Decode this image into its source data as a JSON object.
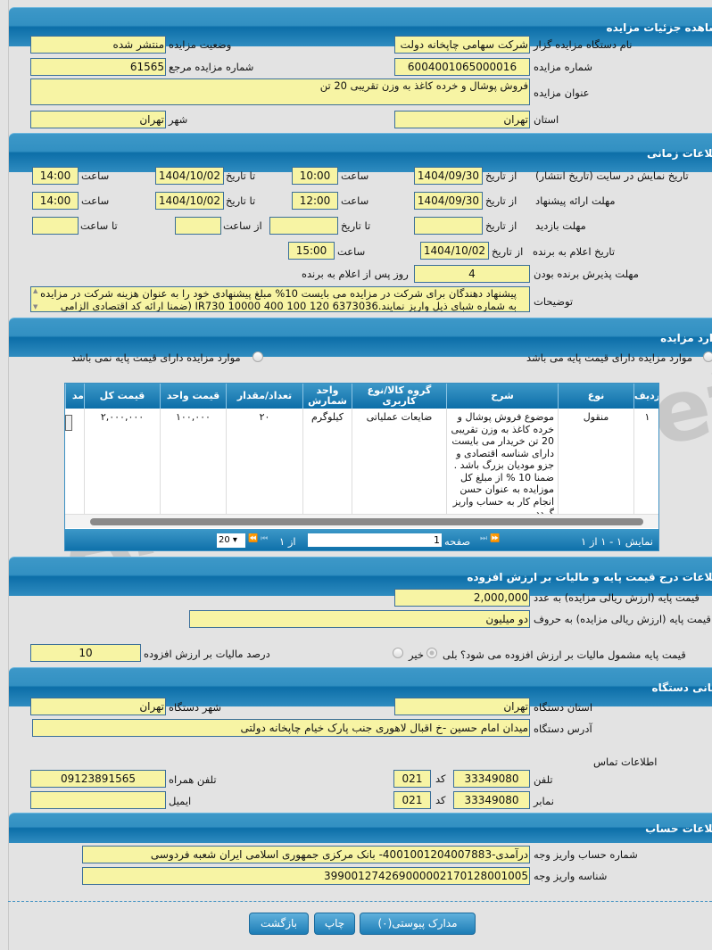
{
  "details": {
    "title": "مشاهده جزئیات مزایده",
    "org_label": "نام دستگاه مزایده گزار",
    "org": "شرکت سهامی چاپخانه دولت",
    "status_label": "وضعیت مزایده",
    "status": "منتشر شده",
    "number_label": "شماره مزایده",
    "number": "6004001065000016",
    "ref_label": "شماره مزایده مرجع",
    "ref": "61565",
    "subject_label": "عنوان مزایده",
    "subject": "فروش پوشال و خرده کاغذ به وزن تقریبی 20 تن",
    "province_label": "استان",
    "province": "تهران",
    "city_label": "شهر",
    "city": "تهران"
  },
  "timing": {
    "title": "اطلاعات زمانی",
    "from_date": "از تاریخ",
    "to_date": "تا تاریخ",
    "time": "ساعت",
    "from_time": "از ساعت",
    "to_time": "تا ساعت",
    "publish_label": "تاریخ نمایش در سایت (تاریخ انتشار)",
    "publish_from": "1404/09/30",
    "publish_from_time": "10:00",
    "publish_to": "1404/10/02",
    "publish_to_time": "14:00",
    "offer_label": "مهلت ارائه پیشنهاد",
    "offer_from": "1404/09/30",
    "offer_from_time": "12:00",
    "offer_to": "1404/10/02",
    "offer_to_time": "14:00",
    "visit_label": "مهلت بازدید",
    "announce_label": "تاریخ اعلام به برنده",
    "announce_date": "1404/10/02",
    "announce_time": "15:00",
    "accept_label": "مهلت پذیرش برنده بودن",
    "accept_days": "4",
    "accept_suffix": "روز پس از اعلام به برنده",
    "desc_label": "توضیحات",
    "desc": "پیشنهاد دهندگان برای شرکت در مزایده می بایست 10% مبلغ پیشنهادی خود را به عنوان هزینه شرکت در مزایده به شماره شبای ذیل واریز نمایند.6373036 120 100 400 10000 IR730 (ضمنا ارائه کد اقتصادی الزامی"
  },
  "items": {
    "title": "موارد مزایده",
    "radio_with": "موارد مزایده دارای قیمت پایه می باشد",
    "radio_without": "موارد مزایده دارای قیمت پایه نمی باشد",
    "columns": [
      "ردیف",
      "نوع",
      "شرح",
      "گروه کالا/نوع کاربری",
      "واحد شمارش",
      "تعداد/مقدار",
      "قیمت واحد",
      "قیمت کل",
      "مد"
    ],
    "rows": [
      {
        "row": "۱",
        "type": "منقول",
        "desc": "موضوع فروش پوشال و خرده کاغذ به وزن تقریبی 20 تن خریدار می بایست دارای شناسه اقتصادی و جزو مودیان بزرگ باشد . ضمنا 10 % از مبلغ کل موزایده به عنوان حسن انجام کار به حساب واریز گردد",
        "group": "ضایعات عملیاتی",
        "unit": "کیلوگرم",
        "qty": "۲۰",
        "unit_price": "۱۰۰,۰۰۰",
        "total": "۲,۰۰۰,۰۰۰"
      }
    ],
    "pager": {
      "showing": "نمایش ۱ - ۱ از ۱",
      "page_label": "صفحه",
      "page": "1",
      "of": "از ۱",
      "page_size": "20"
    }
  },
  "price": {
    "title": "اطلاعات درج قیمت پایه و مالیات بر ارزش افزوده",
    "num_label": "قیمت پایه (ارزش ریالی مزایده) به عدد",
    "num": "2,000,000",
    "words_label": "قیمت پایه (ارزش ریالی مزایده) به حروف",
    "words": "دو میلیون",
    "vat_q": "قیمت پایه مشمول مالیات بر ارزش افزوده می شود؟",
    "yes": "بلی",
    "no": "خیر",
    "vat_pct_label": "درصد مالیات بر ارزش افزوده",
    "vat_pct": "10"
  },
  "address": {
    "title": "نشانی دستگاه",
    "province_label": "استان دستگاه",
    "province": "تهران",
    "city_label": "شهر دستگاه",
    "city": "تهران",
    "addr_label": "آدرس دستگاه",
    "addr": "میدان امام حسین -خ اقبال لاهوری جنب پارک خیام چاپخانه دولتی",
    "contact_label": "اطلاعات تماس",
    "phone_label": "تلفن",
    "phone": "33349080",
    "code_label": "کد",
    "phone_code": "021",
    "mobile_label": "تلفن همراه",
    "mobile": "09123891565",
    "fax_label": "نمابر",
    "fax": "33349080",
    "fax_code": "021",
    "email_label": "ایمیل",
    "email": ""
  },
  "account": {
    "title": "اطلاعات حساب",
    "acct_label": "شماره حساب واریز وجه",
    "acct": "درآمدی-4001001204007883- بانک مرکزی جمهوری اسلامی ایران شعبه فردوسی",
    "id_label": "شناسه واریز وجه",
    "id": "399001274269000002170128001005"
  },
  "buttons": {
    "attachments": "مدارک پیوستی(۰)",
    "print": "چاپ",
    "back": "بازگشت"
  },
  "watermark": "AriaTender.net"
}
